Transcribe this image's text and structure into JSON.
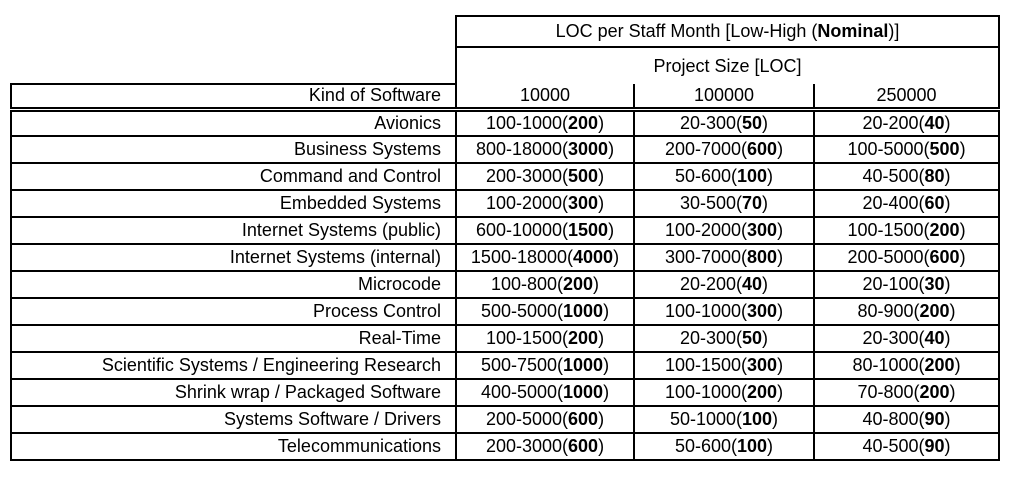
{
  "chart_data": {
    "type": "table",
    "title": "LOC per Staff Month [Low-High (Nominal)]",
    "title_display": {
      "prefix": "LOC per Staff Month [Low-High (",
      "bold": "Nominal",
      "suffix": ")]"
    },
    "subtitle": "Project Size [LOC]",
    "row_header_label": "Kind of Software",
    "columns": [
      "10000",
      "100000",
      "250000"
    ],
    "rows": [
      {
        "label": "Avionics",
        "cells": [
          {
            "low_high": "100-1000",
            "nominal": "200"
          },
          {
            "low_high": "20-300",
            "nominal": "50"
          },
          {
            "low_high": "20-200",
            "nominal": "40"
          }
        ]
      },
      {
        "label": "Business Systems",
        "cells": [
          {
            "low_high": "800-18000",
            "nominal": "3000"
          },
          {
            "low_high": "200-7000",
            "nominal": "600"
          },
          {
            "low_high": "100-5000",
            "nominal": "500"
          }
        ]
      },
      {
        "label": "Command and Control",
        "cells": [
          {
            "low_high": "200-3000",
            "nominal": "500"
          },
          {
            "low_high": "50-600",
            "nominal": "100"
          },
          {
            "low_high": "40-500",
            "nominal": "80"
          }
        ]
      },
      {
        "label": "Embedded Systems",
        "cells": [
          {
            "low_high": "100-2000",
            "nominal": "300"
          },
          {
            "low_high": "30-500",
            "nominal": "70"
          },
          {
            "low_high": "20-400",
            "nominal": "60"
          }
        ]
      },
      {
        "label": "Internet Systems (public)",
        "cells": [
          {
            "low_high": "600-10000",
            "nominal": "1500"
          },
          {
            "low_high": "100-2000",
            "nominal": "300"
          },
          {
            "low_high": "100-1500",
            "nominal": "200"
          }
        ]
      },
      {
        "label": "Internet Systems (internal)",
        "cells": [
          {
            "low_high": "1500-18000",
            "nominal": "4000"
          },
          {
            "low_high": "300-7000",
            "nominal": "800"
          },
          {
            "low_high": "200-5000",
            "nominal": "600"
          }
        ]
      },
      {
        "label": "Microcode",
        "cells": [
          {
            "low_high": "100-800",
            "nominal": "200"
          },
          {
            "low_high": "20-200",
            "nominal": "40"
          },
          {
            "low_high": "20-100",
            "nominal": "30"
          }
        ]
      },
      {
        "label": "Process Control",
        "cells": [
          {
            "low_high": "500-5000",
            "nominal": "1000"
          },
          {
            "low_high": "100-1000",
            "nominal": "300"
          },
          {
            "low_high": "80-900",
            "nominal": "200"
          }
        ]
      },
      {
        "label": "Real-Time",
        "cells": [
          {
            "low_high": "100-1500",
            "nominal": "200"
          },
          {
            "low_high": "20-300",
            "nominal": "50"
          },
          {
            "low_high": "20-300",
            "nominal": "40"
          }
        ]
      },
      {
        "label": "Scientific Systems / Engineering Research",
        "cells": [
          {
            "low_high": "500-7500",
            "nominal": "1000"
          },
          {
            "low_high": "100-1500",
            "nominal": "300"
          },
          {
            "low_high": "80-1000",
            "nominal": "200"
          }
        ]
      },
      {
        "label": "Shrink wrap / Packaged Software",
        "cells": [
          {
            "low_high": "400-5000",
            "nominal": "1000"
          },
          {
            "low_high": "100-1000",
            "nominal": "200"
          },
          {
            "low_high": "70-800",
            "nominal": "200"
          }
        ]
      },
      {
        "label": "Systems Software / Drivers",
        "cells": [
          {
            "low_high": "200-5000",
            "nominal": "600"
          },
          {
            "low_high": "50-1000",
            "nominal": "100"
          },
          {
            "low_high": "40-800",
            "nominal": "90"
          }
        ]
      },
      {
        "label": "Telecommunications",
        "cells": [
          {
            "low_high": "200-3000",
            "nominal": "600"
          },
          {
            "low_high": "50-600",
            "nominal": "100"
          },
          {
            "low_high": "40-500",
            "nominal": "90"
          }
        ]
      }
    ],
    "layout": {
      "legend": "none",
      "grid": "full-borders",
      "nominal_style": "bold-in-parentheses"
    },
    "colors": {
      "border": "#000000",
      "text": "#000000",
      "background": "#ffffff"
    }
  }
}
